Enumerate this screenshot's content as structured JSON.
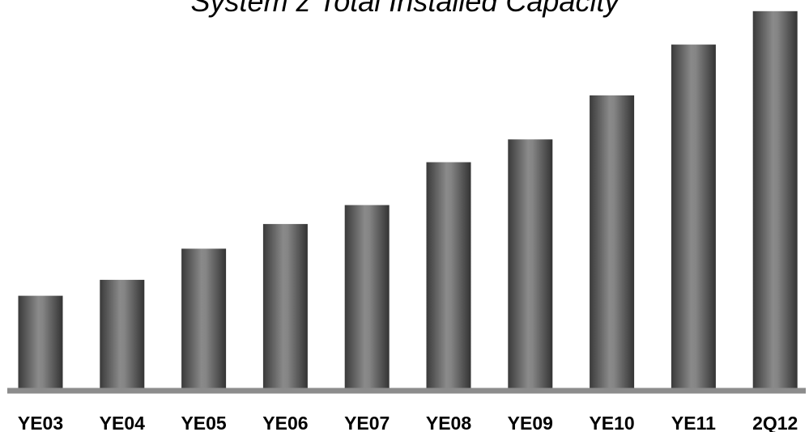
{
  "chart_data": {
    "type": "bar",
    "title": "System z Total Installed Capacity",
    "xlabel": "",
    "ylabel": "",
    "categories": [
      "YE03",
      "YE04",
      "YE05",
      "YE06",
      "YE07",
      "YE08",
      "YE09",
      "YE10",
      "YE11",
      "2Q12"
    ],
    "values": [
      24.4,
      28.6,
      36.8,
      43.3,
      48.3,
      59.6,
      65.6,
      77.2,
      90.6,
      99.4
    ],
    "ylim": [
      0,
      100
    ],
    "grid": false,
    "legend": "none",
    "colors": {
      "bar_edge": "#3a3a3a",
      "bar_center": "#8a8a8a",
      "axis": "#8c8c8c"
    }
  }
}
